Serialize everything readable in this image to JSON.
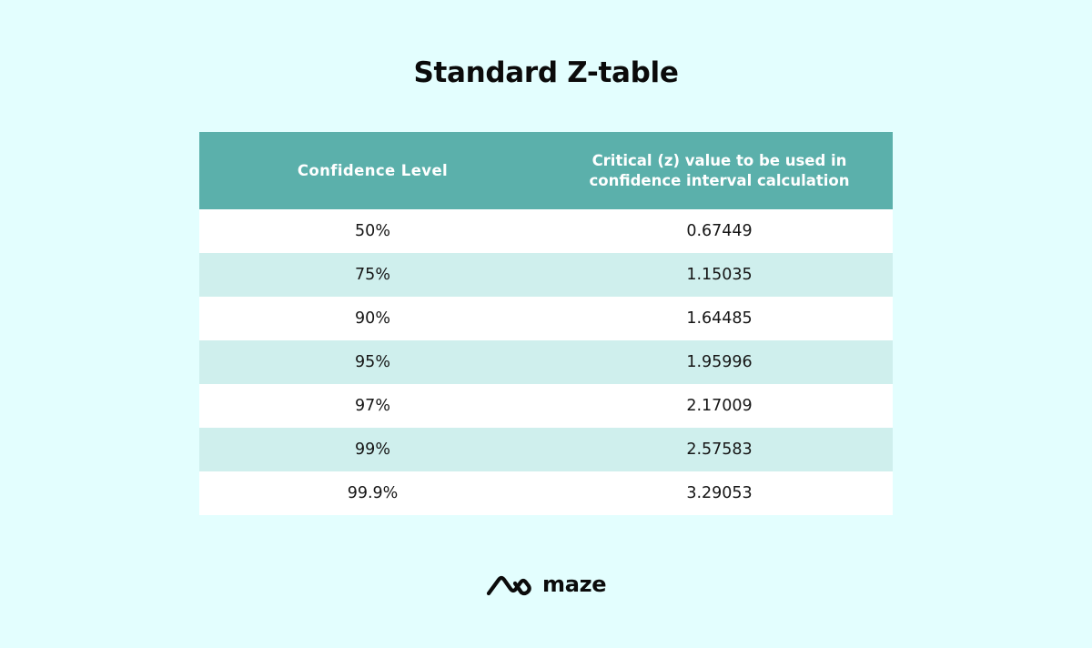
{
  "title": "Standard Z-table",
  "chart_data": {
    "type": "table",
    "columns": [
      "Confidence Level",
      "Critical (z) value to be used in confidence interval calculation"
    ],
    "rows": [
      [
        "50%",
        "0.67449"
      ],
      [
        "75%",
        "1.15035"
      ],
      [
        "90%",
        "1.64485"
      ],
      [
        "95%",
        "1.95996"
      ],
      [
        "97%",
        "2.17009"
      ],
      [
        "99%",
        "2.57583"
      ],
      [
        "99.9%",
        "3.29053"
      ]
    ]
  },
  "logo": {
    "text": "maze",
    "icon": "maze-logo-icon"
  },
  "colors": {
    "background": "#e3fefe",
    "header": "#5bb0ab",
    "row_white": "#ffffff",
    "row_tint": "#cfefed",
    "text": "#0b0b0b"
  }
}
